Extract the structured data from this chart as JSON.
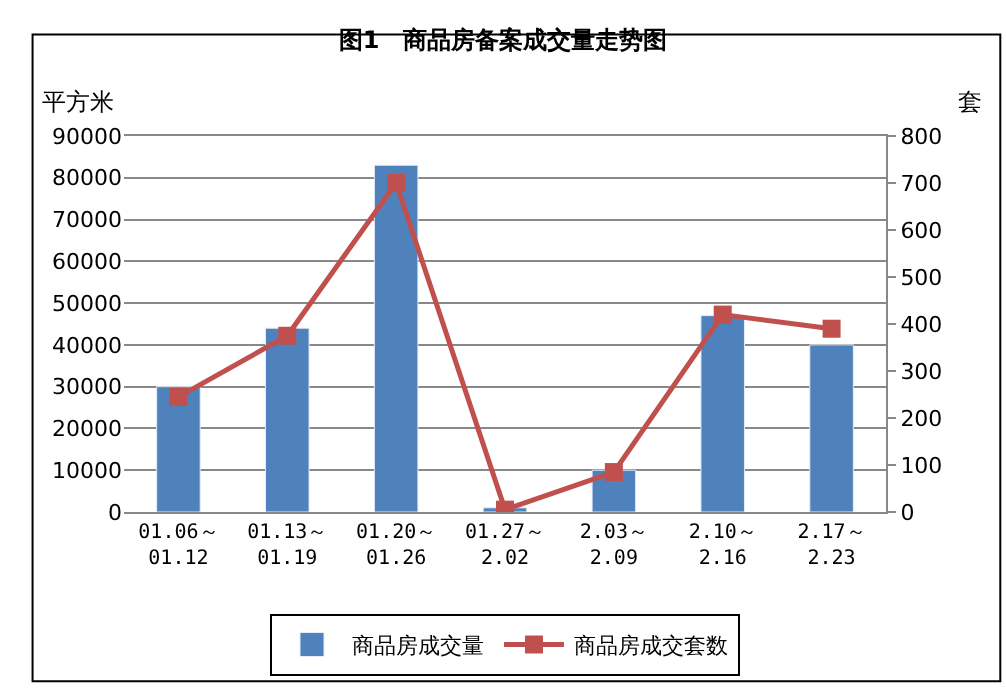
{
  "chart_data": {
    "type": "bar",
    "title": "图1　商品房备案成交量走势图",
    "ylabel": "平方米",
    "y2label": "套",
    "categories": [
      "01.06～\n01.12",
      "01.13～\n01.19",
      "01.20～\n01.26",
      "01.27～\n2.02",
      "2.03～\n2.09",
      "2.10～\n2.16",
      "2.17～\n2.23"
    ],
    "series": [
      {
        "name": "商品房成交量",
        "color": "#4f81bd",
        "values": [
          30000,
          44000,
          83000,
          1000,
          10000,
          47000,
          40000
        ]
      },
      {
        "name": "商品房成交套数",
        "type": "line",
        "axis": "y2",
        "color": "#c0504d",
        "marker": "square",
        "values": [
          245,
          375,
          700,
          5,
          85,
          420,
          390
        ]
      }
    ],
    "ylim": [
      0,
      90000
    ],
    "yticks": [
      0,
      10000,
      20000,
      30000,
      40000,
      50000,
      60000,
      70000,
      80000,
      90000
    ],
    "y2lim": [
      0,
      800
    ],
    "y2ticks": [
      0,
      100,
      200,
      300,
      400,
      500,
      600,
      700,
      800
    ],
    "grid": "y",
    "legend": "bottom"
  }
}
